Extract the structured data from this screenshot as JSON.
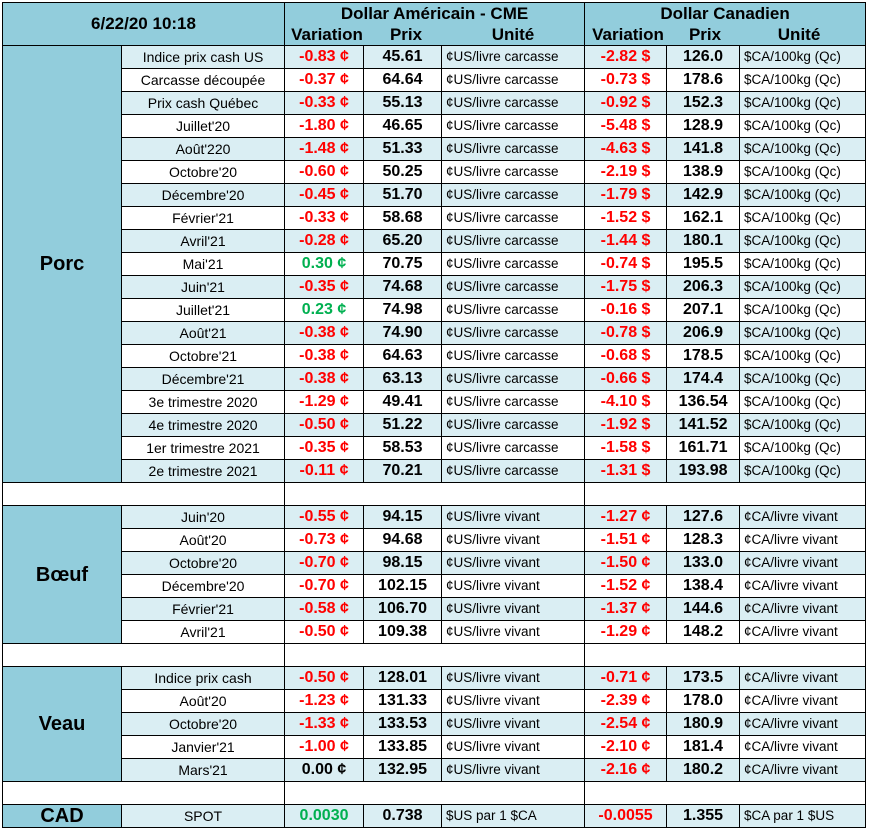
{
  "header": {
    "date": "6/22/20 10:18",
    "usd_title": "Dollar Américain - CME",
    "cad_title": "Dollar Canadien",
    "col_variation": "Variation",
    "col_prix": "Prix",
    "col_unite": "Unité"
  },
  "groups": [
    {
      "name": "Porc",
      "rows": [
        {
          "label": "Indice prix cash US",
          "usd_var": "-0.83 ¢",
          "usd_price": "45.61",
          "usd_unit": "¢US/livre carcasse",
          "cad_var": "-2.82 $",
          "cad_price": "126.0",
          "cad_unit": "$CA/100kg (Qc)"
        },
        {
          "label": "Carcasse découpée",
          "usd_var": "-0.37 ¢",
          "usd_price": "64.64",
          "usd_unit": "¢US/livre carcasse",
          "cad_var": "-0.73 $",
          "cad_price": "178.6",
          "cad_unit": "$CA/100kg (Qc)"
        },
        {
          "label": "Prix cash Québec",
          "usd_var": "-0.33 ¢",
          "usd_price": "55.13",
          "usd_unit": "¢US/livre carcasse",
          "cad_var": "-0.92 $",
          "cad_price": "152.3",
          "cad_unit": "$CA/100kg (Qc)"
        },
        {
          "label": "Juillet'20",
          "usd_var": "-1.80 ¢",
          "usd_price": "46.65",
          "usd_unit": "¢US/livre carcasse",
          "cad_var": "-5.48 $",
          "cad_price": "128.9",
          "cad_unit": "$CA/100kg (Qc)"
        },
        {
          "label": "Août'220",
          "usd_var": "-1.48 ¢",
          "usd_price": "51.33",
          "usd_unit": "¢US/livre carcasse",
          "cad_var": "-4.63 $",
          "cad_price": "141.8",
          "cad_unit": "$CA/100kg (Qc)"
        },
        {
          "label": "Octobre'20",
          "usd_var": "-0.60 ¢",
          "usd_price": "50.25",
          "usd_unit": "¢US/livre carcasse",
          "cad_var": "-2.19 $",
          "cad_price": "138.9",
          "cad_unit": "$CA/100kg (Qc)"
        },
        {
          "label": "Décembre'20",
          "usd_var": "-0.45 ¢",
          "usd_price": "51.70",
          "usd_unit": "¢US/livre carcasse",
          "cad_var": "-1.79 $",
          "cad_price": "142.9",
          "cad_unit": "$CA/100kg (Qc)"
        },
        {
          "label": "Février'21",
          "usd_var": "-0.33 ¢",
          "usd_price": "58.68",
          "usd_unit": "¢US/livre carcasse",
          "cad_var": "-1.52 $",
          "cad_price": "162.1",
          "cad_unit": "$CA/100kg (Qc)"
        },
        {
          "label": "Avril'21",
          "usd_var": "-0.28 ¢",
          "usd_price": "65.20",
          "usd_unit": "¢US/livre carcasse",
          "cad_var": "-1.44 $",
          "cad_price": "180.1",
          "cad_unit": "$CA/100kg (Qc)"
        },
        {
          "label": "Mai'21",
          "usd_var": "0.30 ¢",
          "usd_price": "70.75",
          "usd_unit": "¢US/livre carcasse",
          "cad_var": "-0.74 $",
          "cad_price": "195.5",
          "cad_unit": "$CA/100kg (Qc)"
        },
        {
          "label": "Juin'21",
          "usd_var": "-0.35 ¢",
          "usd_price": "74.68",
          "usd_unit": "¢US/livre carcasse",
          "cad_var": "-1.75 $",
          "cad_price": "206.3",
          "cad_unit": "$CA/100kg (Qc)"
        },
        {
          "label": "Juillet'21",
          "usd_var": "0.23 ¢",
          "usd_price": "74.98",
          "usd_unit": "¢US/livre carcasse",
          "cad_var": "-0.16 $",
          "cad_price": "207.1",
          "cad_unit": "$CA/100kg (Qc)"
        },
        {
          "label": "Août'21",
          "usd_var": "-0.38 ¢",
          "usd_price": "74.90",
          "usd_unit": "¢US/livre carcasse",
          "cad_var": "-0.78 $",
          "cad_price": "206.9",
          "cad_unit": "$CA/100kg (Qc)"
        },
        {
          "label": "Octobre'21",
          "usd_var": "-0.38 ¢",
          "usd_price": "64.63",
          "usd_unit": "¢US/livre carcasse",
          "cad_var": "-0.68 $",
          "cad_price": "178.5",
          "cad_unit": "$CA/100kg (Qc)"
        },
        {
          "label": "Décembre'21",
          "usd_var": "-0.38 ¢",
          "usd_price": "63.13",
          "usd_unit": "¢US/livre carcasse",
          "cad_var": "-0.66 $",
          "cad_price": "174.4",
          "cad_unit": "$CA/100kg (Qc)"
        },
        {
          "label": "3e trimestre 2020",
          "usd_var": "-1.29 ¢",
          "usd_price": "49.41",
          "usd_unit": "¢US/livre carcasse",
          "cad_var": "-4.10 $",
          "cad_price": "136.54",
          "cad_unit": "$CA/100kg (Qc)"
        },
        {
          "label": "4e trimestre 2020",
          "usd_var": "-0.50 ¢",
          "usd_price": "51.22",
          "usd_unit": "¢US/livre carcasse",
          "cad_var": "-1.92 $",
          "cad_price": "141.52",
          "cad_unit": "$CA/100kg (Qc)"
        },
        {
          "label": "1er trimestre 2021",
          "usd_var": "-0.35 ¢",
          "usd_price": "58.53",
          "usd_unit": "¢US/livre carcasse",
          "cad_var": "-1.58 $",
          "cad_price": "161.71",
          "cad_unit": "$CA/100kg (Qc)"
        },
        {
          "label": "2e trimestre 2021",
          "usd_var": "-0.11 ¢",
          "usd_price": "70.21",
          "usd_unit": "¢US/livre carcasse",
          "cad_var": "-1.31 $",
          "cad_price": "193.98",
          "cad_unit": "$CA/100kg (Qc)"
        }
      ]
    },
    {
      "name": "Bœuf",
      "rows": [
        {
          "label": "Juin'20",
          "usd_var": "-0.55 ¢",
          "usd_price": "94.15",
          "usd_unit": "¢US/livre vivant",
          "cad_var": "-1.27 ¢",
          "cad_price": "127.6",
          "cad_unit": "¢CA/livre vivant"
        },
        {
          "label": "Août'20",
          "usd_var": "-0.73 ¢",
          "usd_price": "94.68",
          "usd_unit": "¢US/livre vivant",
          "cad_var": "-1.51 ¢",
          "cad_price": "128.3",
          "cad_unit": "¢CA/livre vivant"
        },
        {
          "label": "Octobre'20",
          "usd_var": "-0.70 ¢",
          "usd_price": "98.15",
          "usd_unit": "¢US/livre vivant",
          "cad_var": "-1.50 ¢",
          "cad_price": "133.0",
          "cad_unit": "¢CA/livre vivant"
        },
        {
          "label": "Décembre'20",
          "usd_var": "-0.70 ¢",
          "usd_price": "102.15",
          "usd_unit": "¢US/livre vivant",
          "cad_var": "-1.52 ¢",
          "cad_price": "138.4",
          "cad_unit": "¢CA/livre vivant"
        },
        {
          "label": "Février'21",
          "usd_var": "-0.58 ¢",
          "usd_price": "106.70",
          "usd_unit": "¢US/livre vivant",
          "cad_var": "-1.37 ¢",
          "cad_price": "144.6",
          "cad_unit": "¢CA/livre vivant"
        },
        {
          "label": "Avril'21",
          "usd_var": "-0.50 ¢",
          "usd_price": "109.38",
          "usd_unit": "¢US/livre vivant",
          "cad_var": "-1.29 ¢",
          "cad_price": "148.2",
          "cad_unit": "¢CA/livre vivant"
        }
      ]
    },
    {
      "name": "Veau",
      "rows": [
        {
          "label": "Indice prix cash",
          "usd_var": "-0.50 ¢",
          "usd_price": "128.01",
          "usd_unit": "¢US/livre vivant",
          "cad_var": "-0.71 ¢",
          "cad_price": "173.5",
          "cad_unit": "¢CA/livre vivant"
        },
        {
          "label": "Août'20",
          "usd_var": "-1.23 ¢",
          "usd_price": "131.33",
          "usd_unit": "¢US/livre vivant",
          "cad_var": "-2.39 ¢",
          "cad_price": "178.0",
          "cad_unit": "¢CA/livre vivant"
        },
        {
          "label": "Octobre'20",
          "usd_var": "-1.33 ¢",
          "usd_price": "133.53",
          "usd_unit": "¢US/livre vivant",
          "cad_var": "-2.54 ¢",
          "cad_price": "180.9",
          "cad_unit": "¢CA/livre vivant"
        },
        {
          "label": "Janvier'21",
          "usd_var": "-1.00 ¢",
          "usd_price": "133.85",
          "usd_unit": "¢US/livre vivant",
          "cad_var": "-2.10 ¢",
          "cad_price": "181.4",
          "cad_unit": "¢CA/livre vivant"
        },
        {
          "label": "Mars'21",
          "usd_var": "0.00 ¢",
          "usd_price": "132.95",
          "usd_unit": "¢US/livre vivant",
          "cad_var": "-2.16 ¢",
          "cad_price": "180.2",
          "cad_unit": "¢CA/livre vivant"
        }
      ]
    }
  ],
  "cad": {
    "name": "CAD",
    "label": "SPOT",
    "usd_var": "0.0030",
    "usd_price": "0.738",
    "usd_unit": "$US par 1 $CA",
    "cad_var": "-0.0055",
    "cad_price": "1.355",
    "cad_unit": "$CA par 1 $US"
  },
  "colors": {
    "header_bg": "#92cddc",
    "row_alt_bg": "#daeef3",
    "negative": "#ff0000",
    "positive": "#00b050"
  }
}
